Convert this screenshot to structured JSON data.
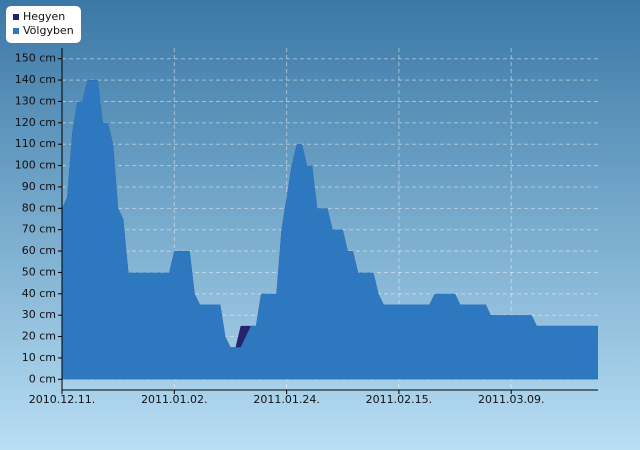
{
  "chart_data": {
    "type": "area",
    "categories": [
      "2010.12.11.",
      null,
      null,
      null,
      null,
      null,
      null,
      null,
      null,
      null,
      null,
      null,
      null,
      null,
      null,
      null,
      null,
      null,
      null,
      null,
      null,
      null,
      "2011.01.02.",
      null,
      null,
      null,
      null,
      null,
      null,
      null,
      null,
      null,
      null,
      null,
      null,
      null,
      null,
      null,
      null,
      null,
      null,
      null,
      null,
      null,
      "2011.01.24.",
      null,
      null,
      null,
      null,
      null,
      null,
      null,
      null,
      null,
      null,
      null,
      null,
      null,
      null,
      null,
      null,
      null,
      null,
      null,
      null,
      null,
      "2011.02.15.",
      null,
      null,
      null,
      null,
      null,
      null,
      null,
      null,
      null,
      null,
      null,
      null,
      null,
      null,
      null,
      null,
      null,
      null,
      null,
      null,
      null,
      "2011.03.09.",
      null,
      null,
      null,
      null,
      null,
      null,
      null,
      null,
      null,
      null,
      null,
      null,
      null,
      null,
      null,
      null,
      null
    ],
    "series": [
      {
        "name": "Hegyen",
        "color": "#23236e",
        "values": [
          80,
          85,
          115,
          130,
          130,
          140,
          140,
          140,
          120,
          120,
          110,
          80,
          75,
          50,
          50,
          50,
          50,
          50,
          50,
          50,
          50,
          50,
          60,
          60,
          60,
          60,
          40,
          35,
          35,
          35,
          35,
          35,
          20,
          15,
          15,
          25,
          25,
          25,
          25,
          40,
          40,
          40,
          40,
          70,
          85,
          100,
          110,
          110,
          100,
          100,
          80,
          80,
          80,
          70,
          70,
          70,
          60,
          60,
          50,
          50,
          50,
          50,
          40,
          35,
          35,
          35,
          35,
          35,
          35,
          35,
          35,
          35,
          35,
          40,
          40,
          40,
          40,
          40,
          35,
          35,
          35,
          35,
          35,
          35,
          30,
          30,
          30,
          30,
          30,
          30,
          30,
          30,
          30,
          25,
          25,
          25,
          25,
          25,
          25,
          25,
          25,
          25,
          25,
          25,
          25,
          25
        ]
      },
      {
        "name": "Völgyben",
        "color": "#2e78c0",
        "values": [
          80,
          85,
          115,
          130,
          130,
          140,
          140,
          140,
          120,
          120,
          110,
          80,
          75,
          50,
          50,
          50,
          50,
          50,
          50,
          50,
          50,
          50,
          60,
          60,
          60,
          60,
          40,
          35,
          35,
          35,
          35,
          35,
          20,
          15,
          15,
          15,
          20,
          25,
          25,
          40,
          40,
          40,
          40,
          70,
          85,
          100,
          110,
          110,
          100,
          100,
          80,
          80,
          80,
          70,
          70,
          70,
          60,
          60,
          50,
          50,
          50,
          50,
          40,
          35,
          35,
          35,
          35,
          35,
          35,
          35,
          35,
          35,
          35,
          40,
          40,
          40,
          40,
          40,
          35,
          35,
          35,
          35,
          35,
          35,
          30,
          30,
          30,
          30,
          30,
          30,
          30,
          30,
          30,
          25,
          25,
          25,
          25,
          25,
          25,
          25,
          25,
          25,
          25,
          25,
          25,
          25
        ]
      }
    ],
    "ylim": [
      -5,
      155
    ],
    "yticks": [
      {
        "value": 0,
        "label": "0 cm"
      },
      {
        "value": 10,
        "label": "10 cm"
      },
      {
        "value": 20,
        "label": "20 cm"
      },
      {
        "value": 30,
        "label": "30 cm"
      },
      {
        "value": 40,
        "label": "40 cm"
      },
      {
        "value": 50,
        "label": "50 cm"
      },
      {
        "value": 60,
        "label": "60 cm"
      },
      {
        "value": 70,
        "label": "70 cm"
      },
      {
        "value": 80,
        "label": "80 cm"
      },
      {
        "value": 90,
        "label": "90 cm"
      },
      {
        "value": 100,
        "label": "100 cm"
      },
      {
        "value": 110,
        "label": "110 cm"
      },
      {
        "value": 120,
        "label": "120 cm"
      },
      {
        "value": 130,
        "label": "130 cm"
      },
      {
        "value": 140,
        "label": "140 cm"
      },
      {
        "value": 150,
        "label": "150 cm"
      }
    ],
    "grid": true,
    "legend": "top-left"
  }
}
